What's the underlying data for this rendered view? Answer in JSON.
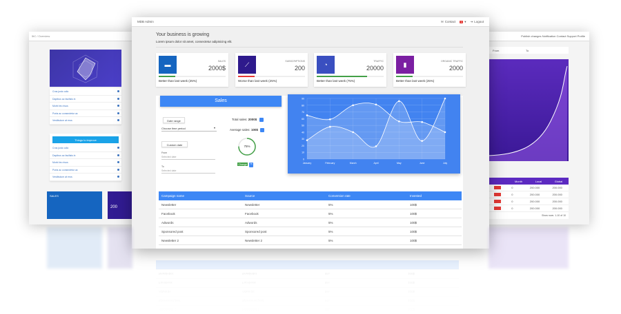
{
  "left_window": {
    "breadcrumb": "5tC  /  Overview",
    "list_items": [
      "Cras justo odio",
      "Dapibus ac facilisis in",
      "Morbi leo risus",
      "Porta ac consectetur ac",
      "Vestibulum at eros"
    ],
    "improve_title": "Things to improve",
    "improve_items": [
      "Cras justo odio",
      "Dapibus ac facilisis in",
      "Morbi leo risus",
      "Porta ac consectetur ac",
      "Vestibulum at eros"
    ],
    "tiles": [
      {
        "label": "SALES",
        "value": "",
        "color": "#1565c0"
      },
      {
        "label": "",
        "value": "200",
        "color": "#311b92"
      }
    ]
  },
  "right_window": {
    "topbar": "Publish changes  Notification  Contact  Support  Profile",
    "col_from": "From",
    "col_to": "To",
    "table_headers": [
      "",
      "Month",
      "Local",
      "Global"
    ],
    "table_rows": [
      [
        "",
        "0",
        "200.000",
        "200.000"
      ],
      [
        "",
        "0",
        "200.000",
        "200.000"
      ],
      [
        "",
        "0",
        "200.000",
        "200.000"
      ],
      [
        "",
        "0",
        "200.000",
        "200.000"
      ]
    ],
    "show_rows": "Show rows",
    "pager": "1-10 of 10"
  },
  "topbar": {
    "brand": "MDB Admin",
    "contact": "Contact",
    "badge": "1",
    "logout": "Logout"
  },
  "page": {
    "heading": "Your business is growing",
    "subtitle": "Lorem ipsum dolor sit amet, consectetur adipisicing elit."
  },
  "tiles": [
    {
      "label": "Sales",
      "value": "2000$",
      "foot": "Better than last week (25%)",
      "icon_color": "#1565c0",
      "line_color": "#43a047",
      "progress": 0.25,
      "icon": "money-icon"
    },
    {
      "label": "Subscriptions",
      "value": "200",
      "foot": "Worse than last week (25%)",
      "icon_color": "#2e1a8c",
      "line_color": "#e53935",
      "progress": 0.25,
      "icon": "line-chart-icon"
    },
    {
      "label": "Traffic",
      "value": "20000",
      "foot": "Better than last week (75%)",
      "icon_color": "#3a4fc0",
      "line_color": "#43a047",
      "progress": 0.75,
      "icon": "pie-chart-icon"
    },
    {
      "label": "Organic traffic",
      "value": "2000",
      "foot": "Better than last week (25%)",
      "icon_color": "#7b1fa2",
      "line_color": "#43a047",
      "progress": 0.25,
      "icon": "bar-chart-icon"
    }
  ],
  "sales": {
    "title": "Sales",
    "date_range_btn": "Date range",
    "choose_period": "Choose time period",
    "custom_date_btn": "Custom date",
    "from_label": "From",
    "to_label": "To",
    "selected_date": "Selected date",
    "total_label": "Total sales:",
    "total_value": "2000$",
    "avg_label": "Average sales:",
    "avg_value": "100$",
    "progress_text": "75%",
    "progress": 0.75,
    "change_label": "Change",
    "change_badge": "%"
  },
  "chart_data": {
    "type": "line",
    "categories": [
      "January",
      "February",
      "March",
      "April",
      "May",
      "June",
      "July"
    ],
    "series": [
      {
        "name": "",
        "values": [
          65,
          59,
          80,
          81,
          56,
          55,
          40
        ]
      },
      {
        "name": "",
        "values": [
          28,
          48,
          40,
          19,
          86,
          27,
          90
        ]
      }
    ],
    "ylim": [
      0,
      90
    ],
    "yticks": [
      0,
      10,
      20,
      30,
      40,
      50,
      60,
      70,
      80,
      90
    ],
    "grid": true,
    "title": "",
    "xlabel": "",
    "ylabel": ""
  },
  "table": {
    "headers": [
      "Campaign name",
      "Source",
      "Conversion rate",
      "Invested"
    ],
    "rows": [
      [
        "Newsletter",
        "Newsletter",
        "5%",
        "100$"
      ],
      [
        "Facebook",
        "Facebook",
        "5%",
        "100$"
      ],
      [
        "Adwords",
        "Adwords",
        "5%",
        "100$"
      ],
      [
        "Sponsored post",
        "Sponsored post",
        "5%",
        "100$"
      ],
      [
        "Newsletter 2",
        "Newsletter 2",
        "5%",
        "100$"
      ]
    ]
  }
}
